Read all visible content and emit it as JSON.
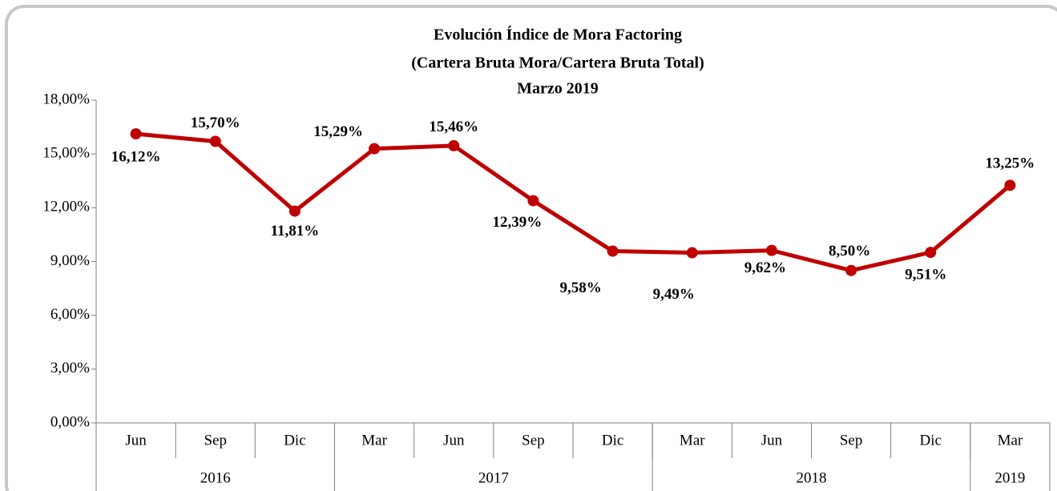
{
  "chart_data": {
    "type": "line",
    "title": [
      "Evolución Índice de Mora  Factoring",
      "(Cartera Bruta Mora/Cartera Bruta Total)",
      "Marzo 2019"
    ],
    "categories": [
      "Jun",
      "Sep",
      "Dic",
      "Mar",
      "Jun",
      "Sep",
      "Dic",
      "Mar",
      "Jun",
      "Sep",
      "Dic",
      "Mar"
    ],
    "year_groups": [
      {
        "label": "2016",
        "count": 3
      },
      {
        "label": "2017",
        "count": 4
      },
      {
        "label": "2018",
        "count": 4
      },
      {
        "label": "2019",
        "count": 1
      }
    ],
    "series": [
      {
        "name": "Índice de Mora",
        "color": "#c00000",
        "values": [
          16.12,
          15.7,
          11.81,
          15.29,
          15.46,
          12.39,
          9.58,
          9.49,
          9.62,
          8.5,
          9.51,
          13.25
        ],
        "value_labels": [
          "16,12%",
          "15,70%",
          "11,81%",
          "15,29%",
          "15,46%",
          "12,39%",
          "9,58%",
          "9,49%",
          "9,62%",
          "8,50%",
          "9,51%",
          "13,25%"
        ]
      }
    ],
    "ylim": [
      0,
      18
    ],
    "yticks": [
      {
        "value": 0,
        "label": "0,00%"
      },
      {
        "value": 3,
        "label": "3,00%"
      },
      {
        "value": 6,
        "label": "6,00%"
      },
      {
        "value": 9,
        "label": "9,00%"
      },
      {
        "value": 12,
        "label": "12,00%"
      },
      {
        "value": 15,
        "label": "15,00%"
      },
      {
        "value": 18,
        "label": "18,00%"
      }
    ],
    "grid": false
  }
}
